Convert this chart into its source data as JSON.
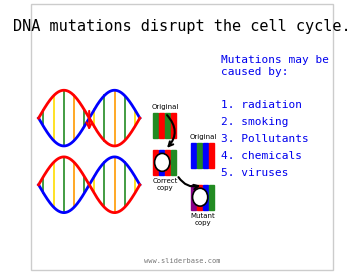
{
  "title": "DNA mutations disrupt the cell cycle.",
  "title_fontsize": 11,
  "title_color": "#000000",
  "title_font": "monospace",
  "subtitle": "Mutations may be\ncaused by:",
  "subtitle_color": "#0000ee",
  "subtitle_fontsize": 8,
  "subtitle_font": "monospace",
  "list_items": [
    "1. radiation",
    "2. smoking",
    "3. Pollutants",
    "4. chemicals",
    "5. viruses"
  ],
  "list_color": "#0000ee",
  "list_fontsize": 8,
  "list_font": "monospace",
  "watermark": "www.sliderbase.com",
  "watermark_fontsize": 5,
  "watermark_color": "#777777",
  "background_color": "#ffffff",
  "border_color": "#cccccc",
  "label_original_top": "Original",
  "label_correct": "Correct\ncopy",
  "label_original_mid": "Original",
  "label_mutant": "Mutant\ncopy",
  "label_fontsize": 5,
  "label_color": "#000000",
  "helix_blue": "#0000ff",
  "helix_red": "#ff0000",
  "bar_colors_orig": [
    "#228B22",
    "#ff0000",
    "#228B22",
    "#ff0000",
    "#dddd00"
  ],
  "bar_colors_orig2": [
    "#0000ff",
    "#228B22",
    "#0000ff",
    "#228B22",
    "#dddd00"
  ],
  "bar_colors_mutant": [
    "#880088",
    "#ff0000",
    "#0000ff",
    "#228B22",
    "#dddd00"
  ]
}
